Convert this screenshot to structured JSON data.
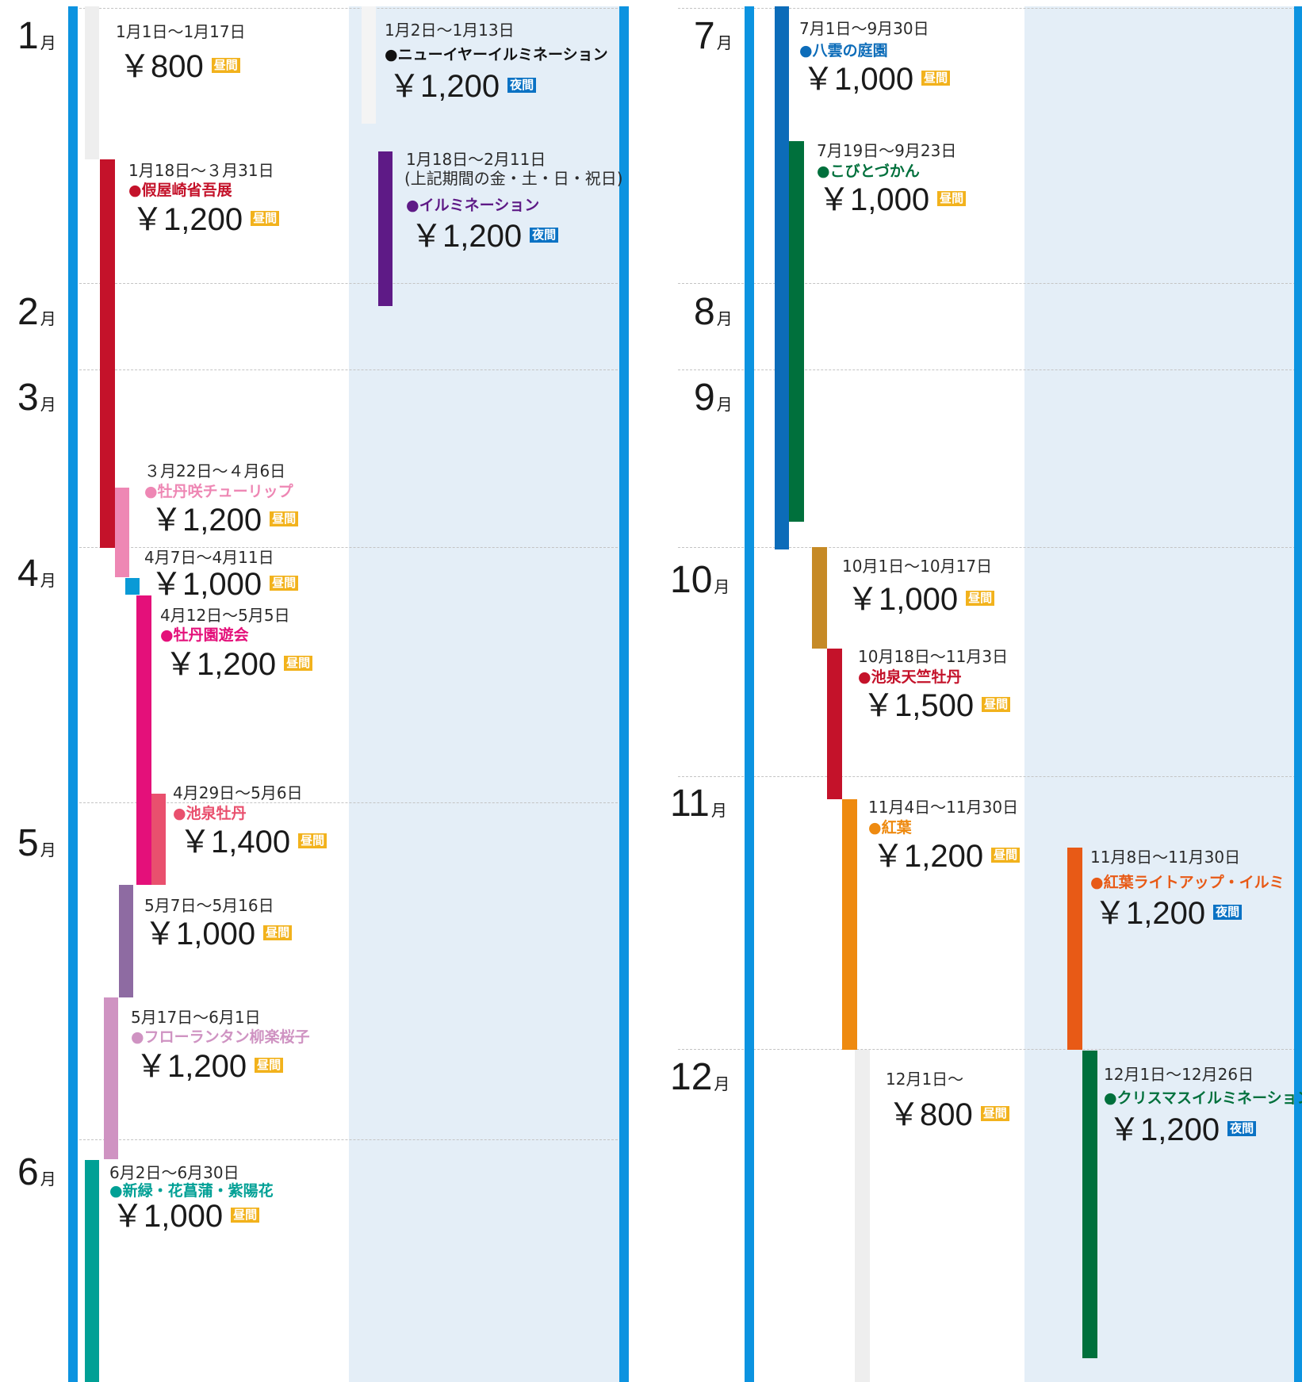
{
  "colors": {
    "frame": "#0c93e0",
    "night_area": "#e4eef7",
    "day_badge": "#f2b21c",
    "night_badge": "#0a72c4"
  },
  "months": [
    "1",
    "2",
    "3",
    "4",
    "5",
    "6",
    "7",
    "8",
    "9",
    "10",
    "11",
    "12"
  ],
  "month_suffix": "月",
  "badges": {
    "day": "昼間",
    "night": "夜間"
  },
  "events": [
    {
      "date": "1月1日～1月17日",
      "name": "",
      "price": "￥800",
      "type": "day",
      "color": "#eeeeee"
    },
    {
      "date": "1月2日～1月13日",
      "name": "●ニューイヤーイルミネーション",
      "name_color": "#111111",
      "price": "￥1,200",
      "type": "night",
      "color": "#f4f4f4"
    },
    {
      "date": "1月18日～３月31日",
      "name": "●假屋崎省吾展",
      "name_color": "#c4122a",
      "price": "￥1,200",
      "type": "day",
      "color": "#c4122a"
    },
    {
      "date": "1月18日～2月11日",
      "sub": "(上記期間の金・土・日・祝日)",
      "name": "●イルミネーション",
      "name_color": "#5e1a86",
      "price": "￥1,200",
      "type": "night",
      "color": "#5e1a86"
    },
    {
      "date": "３月22日～４月6日",
      "name": "●牡丹咲チューリップ",
      "name_color": "#ee87b4",
      "price": "￥1,200",
      "type": "day",
      "color": "#ee87b4"
    },
    {
      "date": "4月7日～4月11日",
      "name": "",
      "price": "￥1,000",
      "type": "day",
      "color": "#0a9ad6"
    },
    {
      "date": "4月12日～5月5日",
      "name": "●牡丹園遊会",
      "name_color": "#e4107a",
      "price": "￥1,200",
      "type": "day",
      "color": "#e4107a"
    },
    {
      "date": "4月29日～5月6日",
      "name": "●池泉牡丹",
      "name_color": "#e9506e",
      "price": "￥1,400",
      "type": "day",
      "color": "#e9506e"
    },
    {
      "date": "5月7日～5月16日",
      "name": "",
      "price": "￥1,000",
      "type": "day",
      "color": "#8e6ba2"
    },
    {
      "date": "5月17日～6月1日",
      "name": "●フローランタン柳楽桜子",
      "name_color": "#cf93c2",
      "price": "￥1,200",
      "type": "day",
      "color": "#cf93c2"
    },
    {
      "date": "6月2日～6月30日",
      "name": "●新緑・花菖蒲・紫陽花",
      "name_color": "#00a095",
      "price": "￥1,000",
      "type": "day",
      "color": "#00a095"
    },
    {
      "date": "7月1日～9月30日",
      "name": "●八雲の庭園",
      "name_color": "#0c6cb9",
      "price": "￥1,000",
      "type": "day",
      "color": "#0c6cb9"
    },
    {
      "date": "7月19日～9月23日",
      "name": "●こびとづかん",
      "name_color": "#00703c",
      "price": "￥1,000",
      "type": "day",
      "color": "#00703c"
    },
    {
      "date": "10月1日～10月17日",
      "name": "",
      "price": "￥1,000",
      "type": "day",
      "color": "#c68a26"
    },
    {
      "date": "10月18日～11月3日",
      "name": "●池泉天竺牡丹",
      "name_color": "#c4122a",
      "price": "￥1,500",
      "type": "day",
      "color": "#c4122a"
    },
    {
      "date": "11月4日～11月30日",
      "name": "●紅葉",
      "name_color": "#ee8a10",
      "price": "￥1,200",
      "type": "day",
      "color": "#ee8a10"
    },
    {
      "date": "11月8日～11月30日",
      "name": "●紅葉ライトアップ・イルミ",
      "name_color": "#e85a16",
      "price": "￥1,200",
      "type": "night",
      "color": "#e85a16"
    },
    {
      "date": "12月1日～",
      "name": "",
      "price": "￥800",
      "type": "day",
      "color": "#eeeeee"
    },
    {
      "date": "12月1日～12月26日",
      "name": "●クリスマスイルミネーション",
      "name_color": "#00703c",
      "price": "￥1,200",
      "type": "night",
      "color": "#00703c"
    }
  ]
}
